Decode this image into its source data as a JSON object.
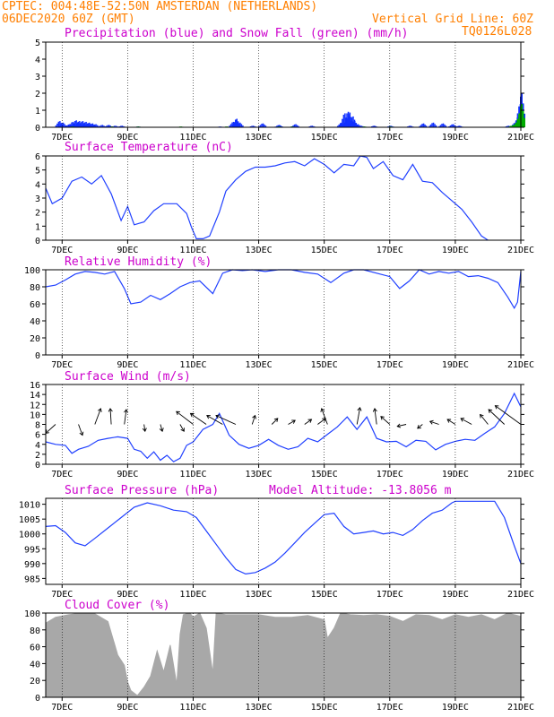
{
  "header": {
    "line1_left": "CPTEC:  004:48E-52:50N  AMSTERDAN (NETHERLANDS)",
    "line2_left": "06DEC2020 60Z (GMT)",
    "line2_right": "Vertical Grid Line: 60Z",
    "line3_right": "TQ0126L028"
  },
  "colors": {
    "header": "#ff7f00",
    "title": "#cc00cc",
    "series_line": "#2040ff",
    "precip_bar": "#1030ff",
    "snow_bar": "#00aa00",
    "cloud_fill": "#a8a8a8"
  },
  "time_axis": {
    "labels": [
      "7DEC",
      "9DEC",
      "11DEC",
      "13DEC",
      "15DEC",
      "17DEC",
      "19DEC",
      "21DEC"
    ],
    "day_range": [
      6.5,
      21
    ]
  },
  "chart_data": [
    {
      "type": "bar",
      "title": "Precipitation (blue) and Snow Fall (green) (mm/h)",
      "ylim": [
        0,
        5
      ],
      "yticks": [
        "0",
        "1",
        "2",
        "3",
        "4",
        "5"
      ],
      "series": [
        {
          "name": "Precipitation",
          "x": [
            6.9,
            7.0,
            7.2,
            7.3,
            7.4,
            7.5,
            7.6,
            7.7,
            7.8,
            7.9,
            8.0,
            8.2,
            8.4,
            8.6,
            8.8,
            9.3,
            11.8,
            12.2,
            12.3,
            12.4,
            12.8,
            13.1,
            13.6,
            14.1,
            14.6,
            15.5,
            15.6,
            15.7,
            15.75,
            15.85,
            15.9,
            16.0,
            16.1,
            16.5,
            17.0,
            17.6,
            18.0,
            18.3,
            18.6,
            18.9,
            19.1,
            20.6,
            20.8,
            20.9,
            20.95,
            21.0
          ],
          "values": [
            0.4,
            0.3,
            0.2,
            0.35,
            0.45,
            0.4,
            0.4,
            0.35,
            0.3,
            0.25,
            0.2,
            0.15,
            0.15,
            0.1,
            0.1,
            0.05,
            0.05,
            0.35,
            0.55,
            0.3,
            0.1,
            0.25,
            0.15,
            0.2,
            0.1,
            0.3,
            0.9,
            1.0,
            0.95,
            0.7,
            0.4,
            0.2,
            0.1,
            0.1,
            0.1,
            0.1,
            0.25,
            0.3,
            0.25,
            0.2,
            0.1,
            0.1,
            0.3,
            0.7,
            1.5,
            2.2
          ]
        },
        {
          "name": "Snow Fall",
          "x": [
            7.3,
            8.5,
            9.3,
            10.6,
            12.0,
            13.6,
            14.0,
            16.2,
            17.0,
            20.7,
            20.8,
            20.9,
            20.95,
            21.0
          ],
          "values": [
            0.05,
            0.05,
            0.05,
            0.05,
            0.05,
            0.05,
            0.05,
            0.05,
            0.05,
            0.1,
            0.2,
            0.5,
            0.9,
            1.5
          ]
        }
      ]
    },
    {
      "type": "line",
      "title": "Surface Temperature (nC)",
      "ylim": [
        0,
        6
      ],
      "yticks": [
        "0",
        "1",
        "2",
        "3",
        "4",
        "5",
        "6"
      ],
      "x": [
        6.5,
        6.7,
        7.0,
        7.3,
        7.6,
        7.9,
        8.2,
        8.5,
        8.8,
        9.0,
        9.2,
        9.5,
        9.8,
        10.1,
        10.5,
        10.8,
        10.95,
        11.1,
        11.3,
        11.5,
        11.8,
        12.0,
        12.3,
        12.6,
        12.9,
        13.2,
        13.5,
        13.8,
        14.1,
        14.4,
        14.7,
        15.0,
        15.3,
        15.6,
        15.9,
        16.1,
        16.3,
        16.5,
        16.8,
        17.1,
        17.4,
        17.7,
        18.0,
        18.3,
        18.6,
        18.9,
        19.2,
        19.5,
        19.8,
        20.0
      ],
      "values": [
        3.7,
        2.6,
        3.0,
        4.2,
        4.5,
        4.0,
        4.6,
        3.3,
        1.4,
        2.4,
        1.1,
        1.3,
        2.1,
        2.6,
        2.6,
        1.9,
        0.9,
        0.1,
        0.1,
        0.3,
        2.0,
        3.5,
        4.3,
        4.9,
        5.2,
        5.2,
        5.3,
        5.5,
        5.6,
        5.3,
        5.8,
        5.4,
        4.8,
        5.4,
        5.3,
        6.0,
        5.9,
        5.1,
        5.6,
        4.6,
        4.3,
        5.4,
        4.2,
        4.1,
        3.4,
        2.8,
        2.2,
        1.3,
        0.3,
        0.0
      ]
    },
    {
      "type": "line",
      "title": "Relative Humidity (%)",
      "ylim": [
        0,
        100
      ],
      "yticks": [
        "0",
        "20",
        "40",
        "60",
        "80",
        "100"
      ],
      "x": [
        6.5,
        6.8,
        7.1,
        7.4,
        7.7,
        8.0,
        8.3,
        8.6,
        8.9,
        9.1,
        9.4,
        9.7,
        10.0,
        10.3,
        10.6,
        10.9,
        11.2,
        11.6,
        11.9,
        12.2,
        12.5,
        12.8,
        13.2,
        13.6,
        14.0,
        14.4,
        14.8,
        15.2,
        15.6,
        15.9,
        16.2,
        16.6,
        17.0,
        17.3,
        17.6,
        17.9,
        18.2,
        18.5,
        18.8,
        19.1,
        19.4,
        19.7,
        20.0,
        20.3,
        20.6,
        20.8,
        20.9,
        21.0
      ],
      "values": [
        80,
        82,
        88,
        95,
        98,
        97,
        95,
        98,
        78,
        60,
        62,
        70,
        65,
        72,
        80,
        85,
        87,
        72,
        96,
        100,
        99,
        100,
        98,
        100,
        100,
        97,
        95,
        85,
        96,
        100,
        100,
        96,
        92,
        78,
        87,
        100,
        95,
        98,
        96,
        98,
        92,
        93,
        90,
        85,
        68,
        55,
        62,
        98
      ]
    },
    {
      "type": "line",
      "title": "Surface Wind (m/s)",
      "ylim": [
        0,
        16
      ],
      "yticks": [
        "0",
        "2",
        "4",
        "6",
        "8",
        "10",
        "12",
        "14",
        "16"
      ],
      "x": [
        6.5,
        6.8,
        7.1,
        7.3,
        7.5,
        7.8,
        8.1,
        8.4,
        8.7,
        9.0,
        9.2,
        9.4,
        9.6,
        9.8,
        10.0,
        10.2,
        10.4,
        10.6,
        10.8,
        11.0,
        11.3,
        11.6,
        11.8,
        12.1,
        12.4,
        12.7,
        13.0,
        13.3,
        13.6,
        13.9,
        14.2,
        14.5,
        14.8,
        15.1,
        15.4,
        15.7,
        16.0,
        16.3,
        16.6,
        16.9,
        17.2,
        17.5,
        17.8,
        18.1,
        18.4,
        18.7,
        19.0,
        19.3,
        19.6,
        19.9,
        20.2,
        20.5,
        20.8,
        21.0
      ],
      "values": [
        4.5,
        4.0,
        3.8,
        2.2,
        3.0,
        3.6,
        4.8,
        5.2,
        5.5,
        5.2,
        3.0,
        2.6,
        1.2,
        2.5,
        0.8,
        1.8,
        0.5,
        1.2,
        3.8,
        4.5,
        7.0,
        8.0,
        10.2,
        5.8,
        4.0,
        3.2,
        3.8,
        5.0,
        3.8,
        3.0,
        3.5,
        5.2,
        4.5,
        6.0,
        7.5,
        9.5,
        7.0,
        9.5,
        5.2,
        4.5,
        4.6,
        3.5,
        4.8,
        4.6,
        2.9,
        4.0,
        4.6,
        5.0,
        4.8,
        6.2,
        7.5,
        10.2,
        14.2,
        11.5
      ],
      "arrows": [
        {
          "x": 6.8,
          "u": -1,
          "v": -0.9
        },
        {
          "x": 7.5,
          "u": 0.4,
          "v": -1.1
        },
        {
          "x": 8.0,
          "u": 0.6,
          "v": 1.6
        },
        {
          "x": 8.5,
          "u": -0.1,
          "v": 1.6
        },
        {
          "x": 8.9,
          "u": 0.2,
          "v": 1.5
        },
        {
          "x": 9.5,
          "u": 0.1,
          "v": -0.7
        },
        {
          "x": 10.0,
          "u": 0.2,
          "v": -0.7
        },
        {
          "x": 10.6,
          "u": 0.4,
          "v": -0.7
        },
        {
          "x": 11.0,
          "u": -1.7,
          "v": 1.3
        },
        {
          "x": 11.4,
          "u": -1.6,
          "v": 1.1
        },
        {
          "x": 11.9,
          "u": -1.6,
          "v": 0.9
        },
        {
          "x": 12.3,
          "u": -2.0,
          "v": 0.9
        },
        {
          "x": 12.8,
          "u": 0.3,
          "v": 0.9
        },
        {
          "x": 13.4,
          "u": 0.6,
          "v": 0.6
        },
        {
          "x": 13.9,
          "u": 0.7,
          "v": 0.4
        },
        {
          "x": 14.4,
          "u": 0.7,
          "v": 0.5
        },
        {
          "x": 14.8,
          "u": 0.8,
          "v": 0.6
        },
        {
          "x": 15.1,
          "u": -0.6,
          "v": 1.6
        },
        {
          "x": 16.0,
          "u": 0.3,
          "v": 1.7
        },
        {
          "x": 16.6,
          "u": -0.2,
          "v": 1.6
        },
        {
          "x": 17.0,
          "u": -0.9,
          "v": 0.8
        },
        {
          "x": 17.5,
          "u": -0.9,
          "v": -0.2
        },
        {
          "x": 18.0,
          "u": -0.5,
          "v": -0.4
        },
        {
          "x": 18.5,
          "u": -0.9,
          "v": 0.3
        },
        {
          "x": 19.0,
          "u": -0.8,
          "v": 0.5
        },
        {
          "x": 19.5,
          "u": -1.1,
          "v": 0.6
        },
        {
          "x": 20.0,
          "u": -0.8,
          "v": 1.0
        },
        {
          "x": 20.5,
          "u": -1.6,
          "v": 1.5
        },
        {
          "x": 21.0,
          "u": -2.6,
          "v": 1.9
        }
      ]
    },
    {
      "type": "line",
      "title": "Surface Pressure (hPa)",
      "subtitle": "Model Altitude: -13.8056 m",
      "ylim": [
        983,
        1012
      ],
      "yticks": [
        "985",
        "990",
        "995",
        "1000",
        "1005",
        "1010"
      ],
      "x": [
        6.5,
        6.8,
        7.1,
        7.4,
        7.7,
        8.0,
        8.4,
        8.8,
        9.2,
        9.6,
        10.0,
        10.4,
        10.8,
        11.1,
        11.4,
        11.7,
        12.0,
        12.3,
        12.6,
        12.9,
        13.2,
        13.5,
        13.8,
        14.1,
        14.4,
        14.7,
        15.0,
        15.3,
        15.6,
        15.9,
        16.2,
        16.5,
        16.8,
        17.1,
        17.4,
        17.7,
        18.0,
        18.3,
        18.6,
        18.9,
        19.0,
        20.2,
        20.5,
        20.8,
        21.0
      ],
      "values": [
        1002.5,
        1002.8,
        1000.5,
        997.0,
        996.0,
        998.5,
        1002.0,
        1005.5,
        1009.0,
        1010.5,
        1009.5,
        1008.0,
        1007.5,
        1005.5,
        1001.0,
        996.5,
        992.0,
        988.0,
        986.5,
        987.0,
        988.5,
        990.5,
        993.5,
        997.0,
        1000.5,
        1003.5,
        1006.5,
        1007.0,
        1002.5,
        1000.0,
        1000.5,
        1001.0,
        1000.0,
        1000.5,
        999.5,
        1001.5,
        1004.5,
        1007.0,
        1008.0,
        1010.5,
        1011.0,
        1011.0,
        1005.5,
        996.0,
        990.0
      ]
    },
    {
      "type": "area",
      "title": "Cloud Cover (%)",
      "ylim": [
        0,
        100
      ],
      "yticks": [
        "0",
        "20",
        "40",
        "60",
        "80",
        "100"
      ],
      "x": [
        6.5,
        6.8,
        7.2,
        7.6,
        8.0,
        8.4,
        8.7,
        8.9,
        9.0,
        9.1,
        9.3,
        9.5,
        9.7,
        9.9,
        10.1,
        10.3,
        10.5,
        10.6,
        10.7,
        10.9,
        11.0,
        11.2,
        11.4,
        11.5,
        11.6,
        11.7,
        12.0,
        12.5,
        13.0,
        13.5,
        14.0,
        14.5,
        15.0,
        15.1,
        15.3,
        15.5,
        15.8,
        16.2,
        16.6,
        17.0,
        17.4,
        17.8,
        18.2,
        18.6,
        19.0,
        19.4,
        19.8,
        20.2,
        20.6,
        21.0
      ],
      "values": [
        88,
        95,
        98,
        100,
        99,
        90,
        50,
        38,
        18,
        8,
        2,
        12,
        25,
        55,
        30,
        62,
        15,
        75,
        98,
        100,
        95,
        100,
        82,
        55,
        28,
        100,
        98,
        98,
        98,
        95,
        95,
        97,
        92,
        70,
        82,
        100,
        98,
        97,
        98,
        96,
        90,
        98,
        97,
        92,
        98,
        95,
        98,
        92,
        100,
        96
      ]
    }
  ]
}
